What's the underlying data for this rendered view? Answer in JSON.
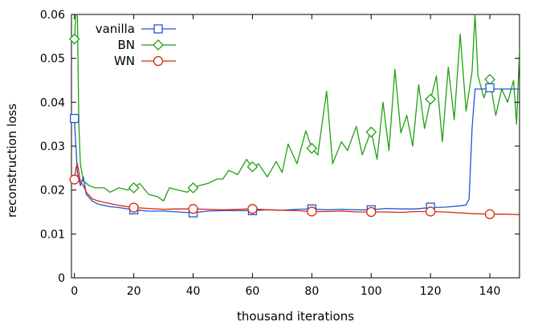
{
  "chart_data": {
    "type": "line",
    "xlabel": "thousand iterations",
    "ylabel": "reconstruction loss",
    "xlim": [
      -1,
      150
    ],
    "ylim": [
      0,
      0.06
    ],
    "xticks": [
      "0",
      "20",
      "40",
      "60",
      "80",
      "100",
      "120",
      "140"
    ],
    "xtick_values": [
      0,
      20,
      40,
      60,
      80,
      100,
      120,
      140
    ],
    "yticks": [
      "0",
      "0.01",
      "0.02",
      "0.03",
      "0.04",
      "0.05",
      "0.06"
    ],
    "ytick_values": [
      0,
      0.01,
      0.02,
      0.03,
      0.04,
      0.05,
      0.06
    ],
    "grid": false,
    "legend_position": "top-left",
    "series": [
      {
        "name": "vanilla",
        "color": "#1f57d6",
        "marker": "square",
        "points": [
          [
            0,
            0.036
          ],
          [
            0.5,
            0.03
          ],
          [
            1,
            0.024
          ],
          [
            2,
            0.021
          ],
          [
            3,
            0.023
          ],
          [
            4,
            0.019
          ],
          [
            6,
            0.0175
          ],
          [
            8,
            0.0168
          ],
          [
            10,
            0.0165
          ],
          [
            12,
            0.0162
          ],
          [
            15,
            0.016
          ],
          [
            20,
            0.0155
          ],
          [
            25,
            0.0152
          ],
          [
            30,
            0.0152
          ],
          [
            35,
            0.015
          ],
          [
            40,
            0.0148
          ],
          [
            45,
            0.0152
          ],
          [
            50,
            0.0153
          ],
          [
            55,
            0.0153
          ],
          [
            60,
            0.0153
          ],
          [
            65,
            0.0155
          ],
          [
            70,
            0.0154
          ],
          [
            75,
            0.0156
          ],
          [
            80,
            0.0157
          ],
          [
            85,
            0.0155
          ],
          [
            90,
            0.0156
          ],
          [
            95,
            0.0155
          ],
          [
            100,
            0.0155
          ],
          [
            105,
            0.0158
          ],
          [
            110,
            0.0157
          ],
          [
            115,
            0.0157
          ],
          [
            120,
            0.016
          ],
          [
            125,
            0.0161
          ],
          [
            130,
            0.0164
          ],
          [
            132,
            0.0166
          ],
          [
            133,
            0.018
          ],
          [
            134,
            0.034
          ],
          [
            135,
            0.043
          ],
          [
            140,
            0.043
          ],
          [
            145,
            0.043
          ],
          [
            150,
            0.043
          ]
        ],
        "marker_points": [
          [
            0,
            0.0363
          ],
          [
            20,
            0.0155
          ],
          [
            40,
            0.0148
          ],
          [
            60,
            0.0153
          ],
          [
            80,
            0.0157
          ],
          [
            100,
            0.0155
          ],
          [
            120,
            0.0161
          ],
          [
            140,
            0.0433
          ]
        ]
      },
      {
        "name": "BN",
        "color": "#22a012",
        "marker": "diamond",
        "points": [
          [
            0,
            0.054
          ],
          [
            0.5,
            0.06
          ],
          [
            1,
            0.06
          ],
          [
            1.5,
            0.035
          ],
          [
            2,
            0.026
          ],
          [
            3,
            0.022
          ],
          [
            5,
            0.021
          ],
          [
            7,
            0.0205
          ],
          [
            10,
            0.0205
          ],
          [
            12,
            0.0195
          ],
          [
            15,
            0.0205
          ],
          [
            18,
            0.02
          ],
          [
            20,
            0.0205
          ],
          [
            22,
            0.0215
          ],
          [
            25,
            0.019
          ],
          [
            28,
            0.0185
          ],
          [
            30,
            0.0175
          ],
          [
            32,
            0.0205
          ],
          [
            35,
            0.02
          ],
          [
            38,
            0.0195
          ],
          [
            40,
            0.0205
          ],
          [
            42,
            0.021
          ],
          [
            45,
            0.0215
          ],
          [
            48,
            0.0225
          ],
          [
            50,
            0.0225
          ],
          [
            52,
            0.0245
          ],
          [
            55,
            0.0235
          ],
          [
            58,
            0.027
          ],
          [
            60,
            0.025
          ],
          [
            62,
            0.026
          ],
          [
            65,
            0.023
          ],
          [
            68,
            0.0265
          ],
          [
            70,
            0.024
          ],
          [
            72,
            0.0305
          ],
          [
            75,
            0.026
          ],
          [
            78,
            0.0335
          ],
          [
            80,
            0.0295
          ],
          [
            82,
            0.028
          ],
          [
            85,
            0.0425
          ],
          [
            87,
            0.026
          ],
          [
            90,
            0.031
          ],
          [
            92,
            0.029
          ],
          [
            95,
            0.0345
          ],
          [
            97,
            0.028
          ],
          [
            100,
            0.0335
          ],
          [
            102,
            0.027
          ],
          [
            104,
            0.04
          ],
          [
            106,
            0.029
          ],
          [
            108,
            0.0475
          ],
          [
            110,
            0.033
          ],
          [
            112,
            0.037
          ],
          [
            114,
            0.03
          ],
          [
            116,
            0.044
          ],
          [
            118,
            0.034
          ],
          [
            120,
            0.0405
          ],
          [
            122,
            0.046
          ],
          [
            124,
            0.031
          ],
          [
            126,
            0.048
          ],
          [
            128,
            0.036
          ],
          [
            130,
            0.0555
          ],
          [
            132,
            0.038
          ],
          [
            134,
            0.047
          ],
          [
            135,
            0.06
          ],
          [
            136,
            0.046
          ],
          [
            138,
            0.041
          ],
          [
            140,
            0.045
          ],
          [
            142,
            0.037
          ],
          [
            144,
            0.043
          ],
          [
            146,
            0.04
          ],
          [
            148,
            0.045
          ],
          [
            149,
            0.035
          ],
          [
            150,
            0.052
          ]
        ],
        "marker_points": [
          [
            0,
            0.0544
          ],
          [
            20,
            0.0205
          ],
          [
            40,
            0.0205
          ],
          [
            60,
            0.0253
          ],
          [
            80,
            0.0295
          ],
          [
            100,
            0.0332
          ],
          [
            120,
            0.0407
          ],
          [
            140,
            0.0452
          ]
        ]
      },
      {
        "name": "WN",
        "color": "#d42a0c",
        "marker": "circle",
        "points": [
          [
            0,
            0.0225
          ],
          [
            0.5,
            0.025
          ],
          [
            1,
            0.026
          ],
          [
            2,
            0.022
          ],
          [
            3,
            0.021
          ],
          [
            4,
            0.0195
          ],
          [
            6,
            0.018
          ],
          [
            8,
            0.0175
          ],
          [
            10,
            0.0172
          ],
          [
            15,
            0.0165
          ],
          [
            20,
            0.016
          ],
          [
            25,
            0.0158
          ],
          [
            30,
            0.0156
          ],
          [
            35,
            0.0157
          ],
          [
            40,
            0.0157
          ],
          [
            45,
            0.0156
          ],
          [
            50,
            0.0155
          ],
          [
            55,
            0.0156
          ],
          [
            60,
            0.0157
          ],
          [
            65,
            0.0155
          ],
          [
            70,
            0.0154
          ],
          [
            75,
            0.0153
          ],
          [
            80,
            0.0151
          ],
          [
            85,
            0.0151
          ],
          [
            90,
            0.0152
          ],
          [
            95,
            0.015
          ],
          [
            100,
            0.015
          ],
          [
            105,
            0.015
          ],
          [
            110,
            0.0149
          ],
          [
            115,
            0.0151
          ],
          [
            120,
            0.0151
          ],
          [
            125,
            0.015
          ],
          [
            130,
            0.0148
          ],
          [
            135,
            0.0146
          ],
          [
            140,
            0.0145
          ],
          [
            145,
            0.0145
          ],
          [
            150,
            0.0144
          ]
        ],
        "marker_points": [
          [
            0,
            0.0224
          ],
          [
            20,
            0.016
          ],
          [
            40,
            0.0157
          ],
          [
            60,
            0.0157
          ],
          [
            80,
            0.0151
          ],
          [
            100,
            0.015
          ],
          [
            120,
            0.0151
          ],
          [
            140,
            0.0145
          ]
        ]
      }
    ]
  }
}
